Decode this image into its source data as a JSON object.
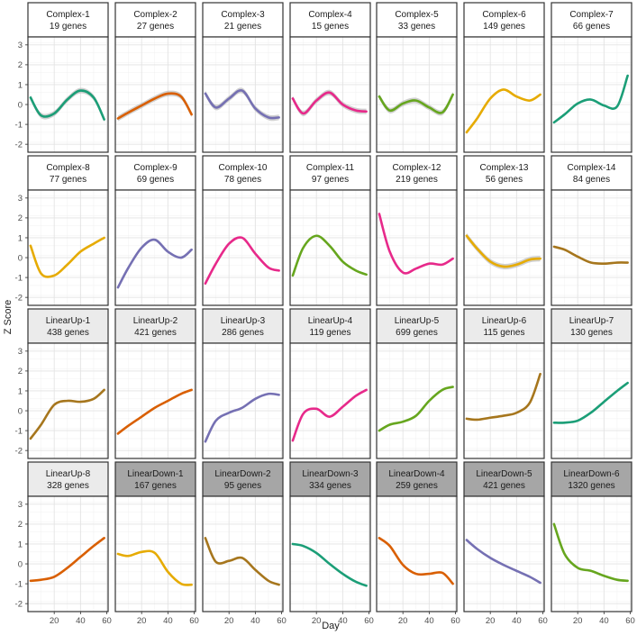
{
  "chart_data": {
    "type": "line",
    "ylabel": "Z Score",
    "xlabel": "Day",
    "xlim": [
      0,
      61
    ],
    "ylim": [
      -2.4,
      3.4
    ],
    "x_ticks": [
      20,
      40,
      60
    ],
    "y_ticks": [
      -2,
      -1,
      0,
      1,
      2,
      3
    ],
    "grid": true,
    "strip_colors": {
      "Complex": "#ffffff",
      "LinearUp": "#ebebeb",
      "LinearDown": "#a6a6a6"
    },
    "panels": [
      {
        "name": "Complex-1",
        "genes": "19 genes",
        "group": "Complex",
        "color": "#1b9e77",
        "ribbon": true,
        "x": [
          2,
          10,
          20,
          30,
          40,
          50,
          58
        ],
        "y": [
          0.35,
          -0.55,
          -0.45,
          0.25,
          0.7,
          0.35,
          -0.75
        ]
      },
      {
        "name": "Complex-2",
        "genes": "27 genes",
        "group": "Complex",
        "color": "#d95f02",
        "ribbon": true,
        "x": [
          2,
          10,
          20,
          30,
          40,
          50,
          58
        ],
        "y": [
          -0.7,
          -0.4,
          -0.05,
          0.3,
          0.55,
          0.4,
          -0.5
        ]
      },
      {
        "name": "Complex-3",
        "genes": "21 genes",
        "group": "Complex",
        "color": "#7570b3",
        "ribbon": true,
        "x": [
          2,
          10,
          20,
          30,
          40,
          50,
          58
        ],
        "y": [
          0.55,
          -0.15,
          0.3,
          0.7,
          -0.2,
          -0.65,
          -0.65
        ]
      },
      {
        "name": "Complex-4",
        "genes": "15 genes",
        "group": "Complex",
        "color": "#e7298a",
        "ribbon": true,
        "x": [
          2,
          10,
          20,
          30,
          40,
          50,
          58
        ],
        "y": [
          0.3,
          -0.45,
          0.2,
          0.6,
          0.0,
          -0.3,
          -0.35
        ]
      },
      {
        "name": "Complex-5",
        "genes": "33 genes",
        "group": "Complex",
        "color": "#66a61e",
        "ribbon": true,
        "x": [
          2,
          10,
          20,
          30,
          40,
          50,
          58
        ],
        "y": [
          0.4,
          -0.3,
          0.05,
          0.2,
          -0.15,
          -0.4,
          0.5
        ]
      },
      {
        "name": "Complex-6",
        "genes": "149 genes",
        "group": "Complex",
        "color": "#e6ab02",
        "ribbon": false,
        "x": [
          2,
          10,
          20,
          30,
          40,
          50,
          58
        ],
        "y": [
          -1.4,
          -0.7,
          0.3,
          0.75,
          0.4,
          0.2,
          0.5
        ]
      },
      {
        "name": "Complex-7",
        "genes": "66 genes",
        "group": "Complex",
        "color": "#1b9e77",
        "ribbon": false,
        "x": [
          2,
          10,
          20,
          30,
          40,
          50,
          58
        ],
        "y": [
          -0.9,
          -0.5,
          0.05,
          0.25,
          -0.05,
          -0.1,
          1.45
        ]
      },
      {
        "name": "Complex-8",
        "genes": "77 genes",
        "group": "Complex",
        "color": "#e6ab02",
        "ribbon": false,
        "x": [
          2,
          10,
          20,
          30,
          40,
          50,
          58
        ],
        "y": [
          0.6,
          -0.8,
          -0.9,
          -0.35,
          0.3,
          0.7,
          1.0
        ]
      },
      {
        "name": "Complex-9",
        "genes": "69 genes",
        "group": "Complex",
        "color": "#7570b3",
        "ribbon": false,
        "x": [
          2,
          10,
          20,
          30,
          40,
          50,
          58
        ],
        "y": [
          -1.5,
          -0.5,
          0.5,
          0.9,
          0.3,
          0.0,
          0.4
        ]
      },
      {
        "name": "Complex-10",
        "genes": "78 genes",
        "group": "Complex",
        "color": "#e7298a",
        "ribbon": false,
        "x": [
          2,
          10,
          20,
          30,
          40,
          50,
          58
        ],
        "y": [
          -1.3,
          -0.3,
          0.7,
          1.0,
          0.2,
          -0.5,
          -0.65
        ]
      },
      {
        "name": "Complex-11",
        "genes": "97 genes",
        "group": "Complex",
        "color": "#66a61e",
        "ribbon": false,
        "x": [
          2,
          10,
          20,
          30,
          40,
          50,
          58
        ],
        "y": [
          -0.9,
          0.5,
          1.1,
          0.6,
          -0.2,
          -0.65,
          -0.85
        ]
      },
      {
        "name": "Complex-12",
        "genes": "219 genes",
        "group": "Complex",
        "color": "#e7298a",
        "ribbon": false,
        "x": [
          2,
          10,
          20,
          30,
          40,
          50,
          58
        ],
        "y": [
          2.2,
          0.3,
          -0.75,
          -0.55,
          -0.3,
          -0.35,
          -0.05
        ]
      },
      {
        "name": "Complex-13",
        "genes": "56 genes",
        "group": "Complex",
        "color": "#e6ab02",
        "ribbon": true,
        "x": [
          2,
          10,
          20,
          30,
          40,
          50,
          58
        ],
        "y": [
          1.1,
          0.45,
          -0.2,
          -0.45,
          -0.35,
          -0.1,
          -0.05
        ]
      },
      {
        "name": "Complex-14",
        "genes": "84 genes",
        "group": "Complex",
        "color": "#a6761d",
        "ribbon": false,
        "x": [
          2,
          10,
          20,
          30,
          40,
          50,
          58
        ],
        "y": [
          0.55,
          0.4,
          0.05,
          -0.25,
          -0.3,
          -0.25,
          -0.25
        ]
      },
      {
        "name": "LinearUp-1",
        "genes": "438 genes",
        "group": "LinearUp",
        "color": "#a6761d",
        "ribbon": false,
        "x": [
          2,
          10,
          20,
          30,
          40,
          50,
          58
        ],
        "y": [
          -1.4,
          -0.7,
          0.3,
          0.5,
          0.45,
          0.6,
          1.05
        ]
      },
      {
        "name": "LinearUp-2",
        "genes": "421 genes",
        "group": "LinearUp",
        "color": "#d95f02",
        "ribbon": false,
        "x": [
          2,
          10,
          20,
          30,
          40,
          50,
          58
        ],
        "y": [
          -1.15,
          -0.75,
          -0.3,
          0.15,
          0.5,
          0.85,
          1.05
        ]
      },
      {
        "name": "LinearUp-3",
        "genes": "286 genes",
        "group": "LinearUp",
        "color": "#7570b3",
        "ribbon": false,
        "x": [
          2,
          10,
          20,
          30,
          40,
          50,
          58
        ],
        "y": [
          -1.55,
          -0.5,
          -0.1,
          0.15,
          0.6,
          0.85,
          0.8
        ]
      },
      {
        "name": "LinearUp-4",
        "genes": "119 genes",
        "group": "LinearUp",
        "color": "#e7298a",
        "ribbon": false,
        "x": [
          2,
          10,
          20,
          30,
          40,
          50,
          58
        ],
        "y": [
          -1.5,
          -0.15,
          0.1,
          -0.3,
          0.2,
          0.75,
          1.05
        ]
      },
      {
        "name": "LinearUp-5",
        "genes": "699 genes",
        "group": "LinearUp",
        "color": "#66a61e",
        "ribbon": false,
        "x": [
          2,
          10,
          20,
          30,
          40,
          50,
          58
        ],
        "y": [
          -1.0,
          -0.7,
          -0.55,
          -0.25,
          0.5,
          1.05,
          1.2
        ]
      },
      {
        "name": "LinearUp-6",
        "genes": "115 genes",
        "group": "LinearUp",
        "color": "#a6761d",
        "ribbon": false,
        "x": [
          2,
          10,
          20,
          30,
          40,
          50,
          58
        ],
        "y": [
          -0.4,
          -0.45,
          -0.35,
          -0.25,
          -0.1,
          0.4,
          1.85
        ]
      },
      {
        "name": "LinearUp-7",
        "genes": "130 genes",
        "group": "LinearUp",
        "color": "#1b9e77",
        "ribbon": false,
        "x": [
          2,
          10,
          20,
          30,
          40,
          50,
          58
        ],
        "y": [
          -0.6,
          -0.6,
          -0.5,
          -0.1,
          0.45,
          1.0,
          1.4
        ]
      },
      {
        "name": "LinearUp-8",
        "genes": "328 genes",
        "group": "LinearUp",
        "color": "#d95f02",
        "ribbon": false,
        "x": [
          2,
          10,
          20,
          30,
          40,
          50,
          58
        ],
        "y": [
          -0.85,
          -0.8,
          -0.65,
          -0.2,
          0.35,
          0.9,
          1.3
        ]
      },
      {
        "name": "LinearDown-1",
        "genes": "167 genes",
        "group": "LinearDown",
        "color": "#e6ab02",
        "ribbon": false,
        "x": [
          2,
          10,
          20,
          30,
          40,
          50,
          58
        ],
        "y": [
          0.5,
          0.4,
          0.6,
          0.55,
          -0.4,
          -1.0,
          -1.05
        ]
      },
      {
        "name": "LinearDown-2",
        "genes": "95 genes",
        "group": "LinearDown",
        "color": "#a6761d",
        "ribbon": false,
        "x": [
          2,
          10,
          20,
          30,
          40,
          50,
          58
        ],
        "y": [
          1.3,
          0.1,
          0.15,
          0.3,
          -0.3,
          -0.85,
          -1.05
        ]
      },
      {
        "name": "LinearDown-3",
        "genes": "334 genes",
        "group": "LinearDown",
        "color": "#1b9e77",
        "ribbon": false,
        "x": [
          2,
          10,
          20,
          30,
          40,
          50,
          58
        ],
        "y": [
          1.0,
          0.9,
          0.55,
          0.0,
          -0.5,
          -0.9,
          -1.1
        ]
      },
      {
        "name": "LinearDown-4",
        "genes": "259 genes",
        "group": "LinearDown",
        "color": "#d95f02",
        "ribbon": false,
        "x": [
          2,
          10,
          20,
          30,
          40,
          50,
          58
        ],
        "y": [
          1.3,
          0.9,
          -0.05,
          -0.5,
          -0.5,
          -0.45,
          -1.0
        ]
      },
      {
        "name": "LinearDown-5",
        "genes": "421 genes",
        "group": "LinearDown",
        "color": "#7570b3",
        "ribbon": false,
        "x": [
          2,
          10,
          20,
          30,
          40,
          50,
          58
        ],
        "y": [
          1.2,
          0.75,
          0.3,
          -0.05,
          -0.35,
          -0.65,
          -0.95
        ]
      },
      {
        "name": "LinearDown-6",
        "genes": "1320 genes",
        "group": "LinearDown",
        "color": "#66a61e",
        "ribbon": false,
        "x": [
          2,
          10,
          20,
          30,
          40,
          50,
          58
        ],
        "y": [
          2.0,
          0.5,
          -0.2,
          -0.35,
          -0.6,
          -0.8,
          -0.85
        ]
      }
    ]
  }
}
